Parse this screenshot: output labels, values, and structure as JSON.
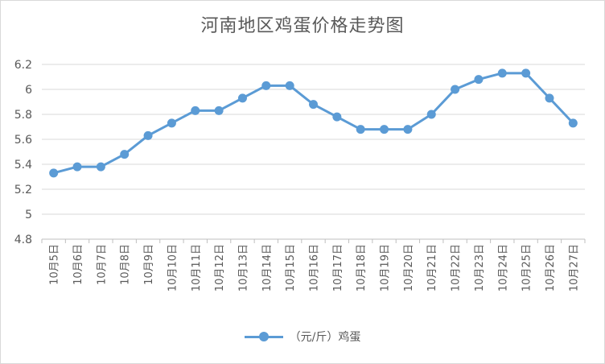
{
  "chart_data": {
    "type": "line",
    "title": "河南地区鸡蛋价格走势图",
    "xlabel": "",
    "ylabel": "",
    "categories": [
      "10月5日",
      "10月6日",
      "10月7日",
      "10月8日",
      "10月9日",
      "10月10日",
      "10月11日",
      "10月12日",
      "10月13日",
      "10月14日",
      "10月15日",
      "10月16日",
      "10月17日",
      "10月18日",
      "10月19日",
      "10月20日",
      "10月21日",
      "10月22日",
      "10月23日",
      "10月24日",
      "10月25日",
      "10月26日",
      "10月27日"
    ],
    "series": [
      {
        "name": "（元/斤）鸡蛋",
        "color": "#5b9bd5",
        "values": [
          5.33,
          5.38,
          5.38,
          5.48,
          5.63,
          5.73,
          5.83,
          5.83,
          5.93,
          6.03,
          6.03,
          5.88,
          5.78,
          5.68,
          5.68,
          5.68,
          5.8,
          6.0,
          6.08,
          6.13,
          6.13,
          5.93,
          5.73
        ]
      }
    ],
    "ylim": [
      4.8,
      6.2
    ],
    "yticks": [
      "4.8",
      "5",
      "5.2",
      "5.4",
      "5.6",
      "5.8",
      "6",
      "6.2"
    ],
    "grid": true,
    "legend_position": "bottom"
  }
}
